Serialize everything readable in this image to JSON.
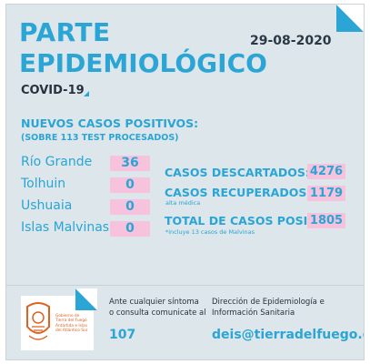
{
  "header": {
    "title_line1": "PARTE",
    "title_line2": "EPIDEMIOLÓGICO",
    "date": "29-08-2020",
    "subtitle": "COVID-19"
  },
  "new_cases": {
    "heading": "NUEVOS CASOS POSITIVOS:",
    "subheading": "(SOBRE 113 TEST PROCESADOS)",
    "cities": [
      {
        "name": "Río Grande",
        "value": "36"
      },
      {
        "name": "Tolhuin",
        "value": "0"
      },
      {
        "name": "Ushuaia",
        "value": "0"
      },
      {
        "name": "Islas Malvinas",
        "value": "0"
      }
    ]
  },
  "totals": {
    "discarded_label": "CASOS DESCARTADOS:",
    "discarded_value": "4276",
    "recovered_label": "CASOS RECUPERADOS:",
    "recovered_note": "alta médica",
    "recovered_value": "1179",
    "total_label": "TOTAL DE CASOS POSITIVOS",
    "total_note": "*incluye 13 casos de Malvinas",
    "total_value": "1805"
  },
  "footer": {
    "logo_text": "Gobierno de Tierra del Fuego Antártida e Islas del Atlántico Sur",
    "contact_line1": "Ante cualquier síntoma",
    "contact_line2": "o consulta comunicate al",
    "phone": "107",
    "dept_line1": "Dirección de Epidemiología e",
    "dept_line2": "Información Sanitaria",
    "email": "deis@tierradelfuego.gov.ar"
  },
  "colors": {
    "accent": "#2aa5d6",
    "background": "#dde6ea",
    "highlight": "#f6c2dc",
    "dark_text": "#26323d",
    "logo_orange": "#e0621f"
  }
}
